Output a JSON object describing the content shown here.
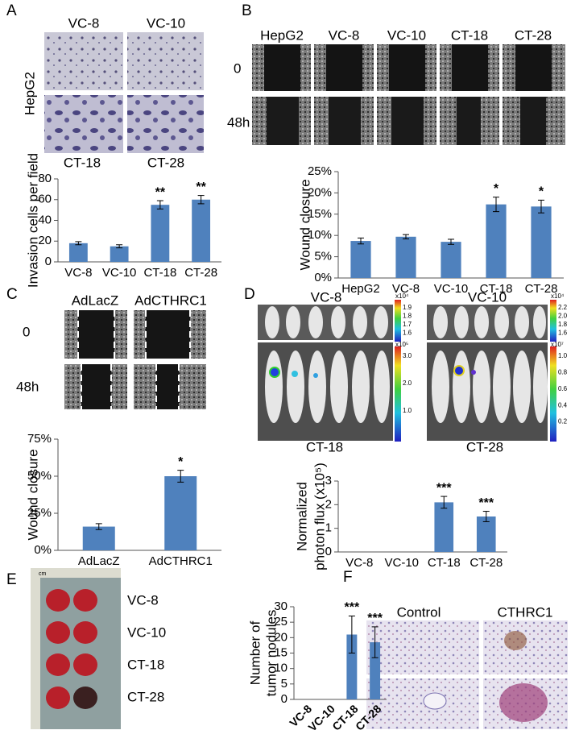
{
  "panels": {
    "A": {
      "letter": "A",
      "top": [
        "VC-8",
        "VC-10"
      ],
      "side": "HepG2",
      "bottom": [
        "CT-18",
        "CT-28"
      ]
    },
    "B": {
      "letter": "B",
      "columns": [
        "HepG2",
        "VC-8",
        "VC-10",
        "CT-18",
        "CT-28"
      ],
      "rows": [
        "0",
        "48h"
      ]
    },
    "C": {
      "letter": "C",
      "columns": [
        "AdLacZ",
        "AdCTHRC1"
      ],
      "rows": [
        "0",
        "48h"
      ]
    },
    "D": {
      "letter": "D",
      "top": [
        "VC-8",
        "VC-10"
      ],
      "bottom": [
        "CT-18",
        "CT-28"
      ],
      "colorbars": [
        {
          "unit": "x10⁴",
          "ticks": [
            "1.9",
            "1.8",
            "1.7",
            "1.6"
          ]
        },
        {
          "unit": "x10⁴",
          "ticks": [
            "2.2",
            "2.0",
            "1.8",
            "1.6"
          ]
        },
        {
          "unit": "x10⁵",
          "ticks": [
            "3.0",
            "2.0",
            "1.0"
          ]
        },
        {
          "unit": "x10⁷",
          "ticks": [
            "1.0",
            "0.8",
            "0.6",
            "0.4",
            "0.2"
          ]
        }
      ]
    },
    "E": {
      "letter": "E",
      "rows": [
        "VC-8",
        "VC-10",
        "CT-18",
        "CT-28"
      ],
      "ruler": "cm"
    },
    "F": {
      "letter": "F",
      "columns": [
        "Control",
        "CTHRC1"
      ]
    }
  },
  "chart_data": [
    {
      "type": "bar",
      "ylabel": [
        "Invasion cells per field"
      ],
      "categories": [
        "VC-8",
        "VC-10",
        "CT-18",
        "CT-28"
      ],
      "values": [
        18,
        15,
        55,
        60
      ],
      "errors": [
        1.5,
        1.5,
        4,
        4
      ],
      "annotations": [
        null,
        null,
        "**",
        "**"
      ],
      "color": "#4f81bd",
      "ylim": [
        0,
        80
      ],
      "yticks": [
        0,
        20,
        40,
        60,
        80
      ]
    },
    {
      "type": "bar",
      "ylabel": [
        "Wound closure"
      ],
      "categories": [
        "HepG2",
        "VC-8",
        "VC-10",
        "CT-18",
        "CT-28"
      ],
      "values": [
        8.7,
        9.7,
        8.5,
        17.3,
        16.8
      ],
      "errors": [
        0.7,
        0.5,
        0.6,
        1.7,
        1.5
      ],
      "annotations": [
        null,
        null,
        null,
        "*",
        "*"
      ],
      "color": "#4f81bd",
      "ylim": [
        0,
        25
      ],
      "yticks": [
        {
          "value": 0,
          "label": "0%"
        },
        {
          "value": 5,
          "label": "5%"
        },
        {
          "value": 10,
          "label": "10%"
        },
        {
          "value": 15,
          "label": "15%"
        },
        {
          "value": 20,
          "label": "20%"
        },
        {
          "value": 25,
          "label": "25%"
        }
      ]
    },
    {
      "type": "bar",
      "ylabel": [
        "Wound closure"
      ],
      "categories": [
        "AdLacZ",
        "AdCTHRC1"
      ],
      "values": [
        16,
        50
      ],
      "errors": [
        2,
        4
      ],
      "annotations": [
        null,
        "*"
      ],
      "color": "#4f81bd",
      "ylim": [
        0,
        75
      ],
      "yticks": [
        {
          "value": 0,
          "label": "0%"
        },
        {
          "value": 25,
          "label": "25%"
        },
        {
          "value": 50,
          "label": "50%"
        },
        {
          "value": 75,
          "label": "75%"
        }
      ]
    },
    {
      "type": "bar",
      "ylabel": [
        "Normalized",
        "photon flux (x10⁵)"
      ],
      "categories": [
        "VC-8",
        "VC-10",
        "CT-18",
        "CT-28"
      ],
      "values": [
        0,
        0,
        2.1,
        1.5
      ],
      "errors": [
        null,
        null,
        0.25,
        0.22
      ],
      "annotations": [
        null,
        null,
        "***",
        "***"
      ],
      "color": "#4f81bd",
      "ylim": [
        0,
        3
      ],
      "yticks": [
        0,
        1,
        2,
        3
      ]
    },
    {
      "type": "bar",
      "ylabel": [
        "Number of",
        "tumor nodules"
      ],
      "categories": [
        "VC-8",
        "VC-10",
        "CT-18",
        "CT-28"
      ],
      "values": [
        0,
        0,
        21,
        18.5
      ],
      "errors": [
        null,
        null,
        6,
        5
      ],
      "annotations": [
        null,
        null,
        "***",
        "***"
      ],
      "color": "#4f81bd",
      "ylim": [
        0,
        30
      ],
      "yticks": [
        0,
        5,
        10,
        15,
        20,
        25,
        30
      ]
    }
  ]
}
